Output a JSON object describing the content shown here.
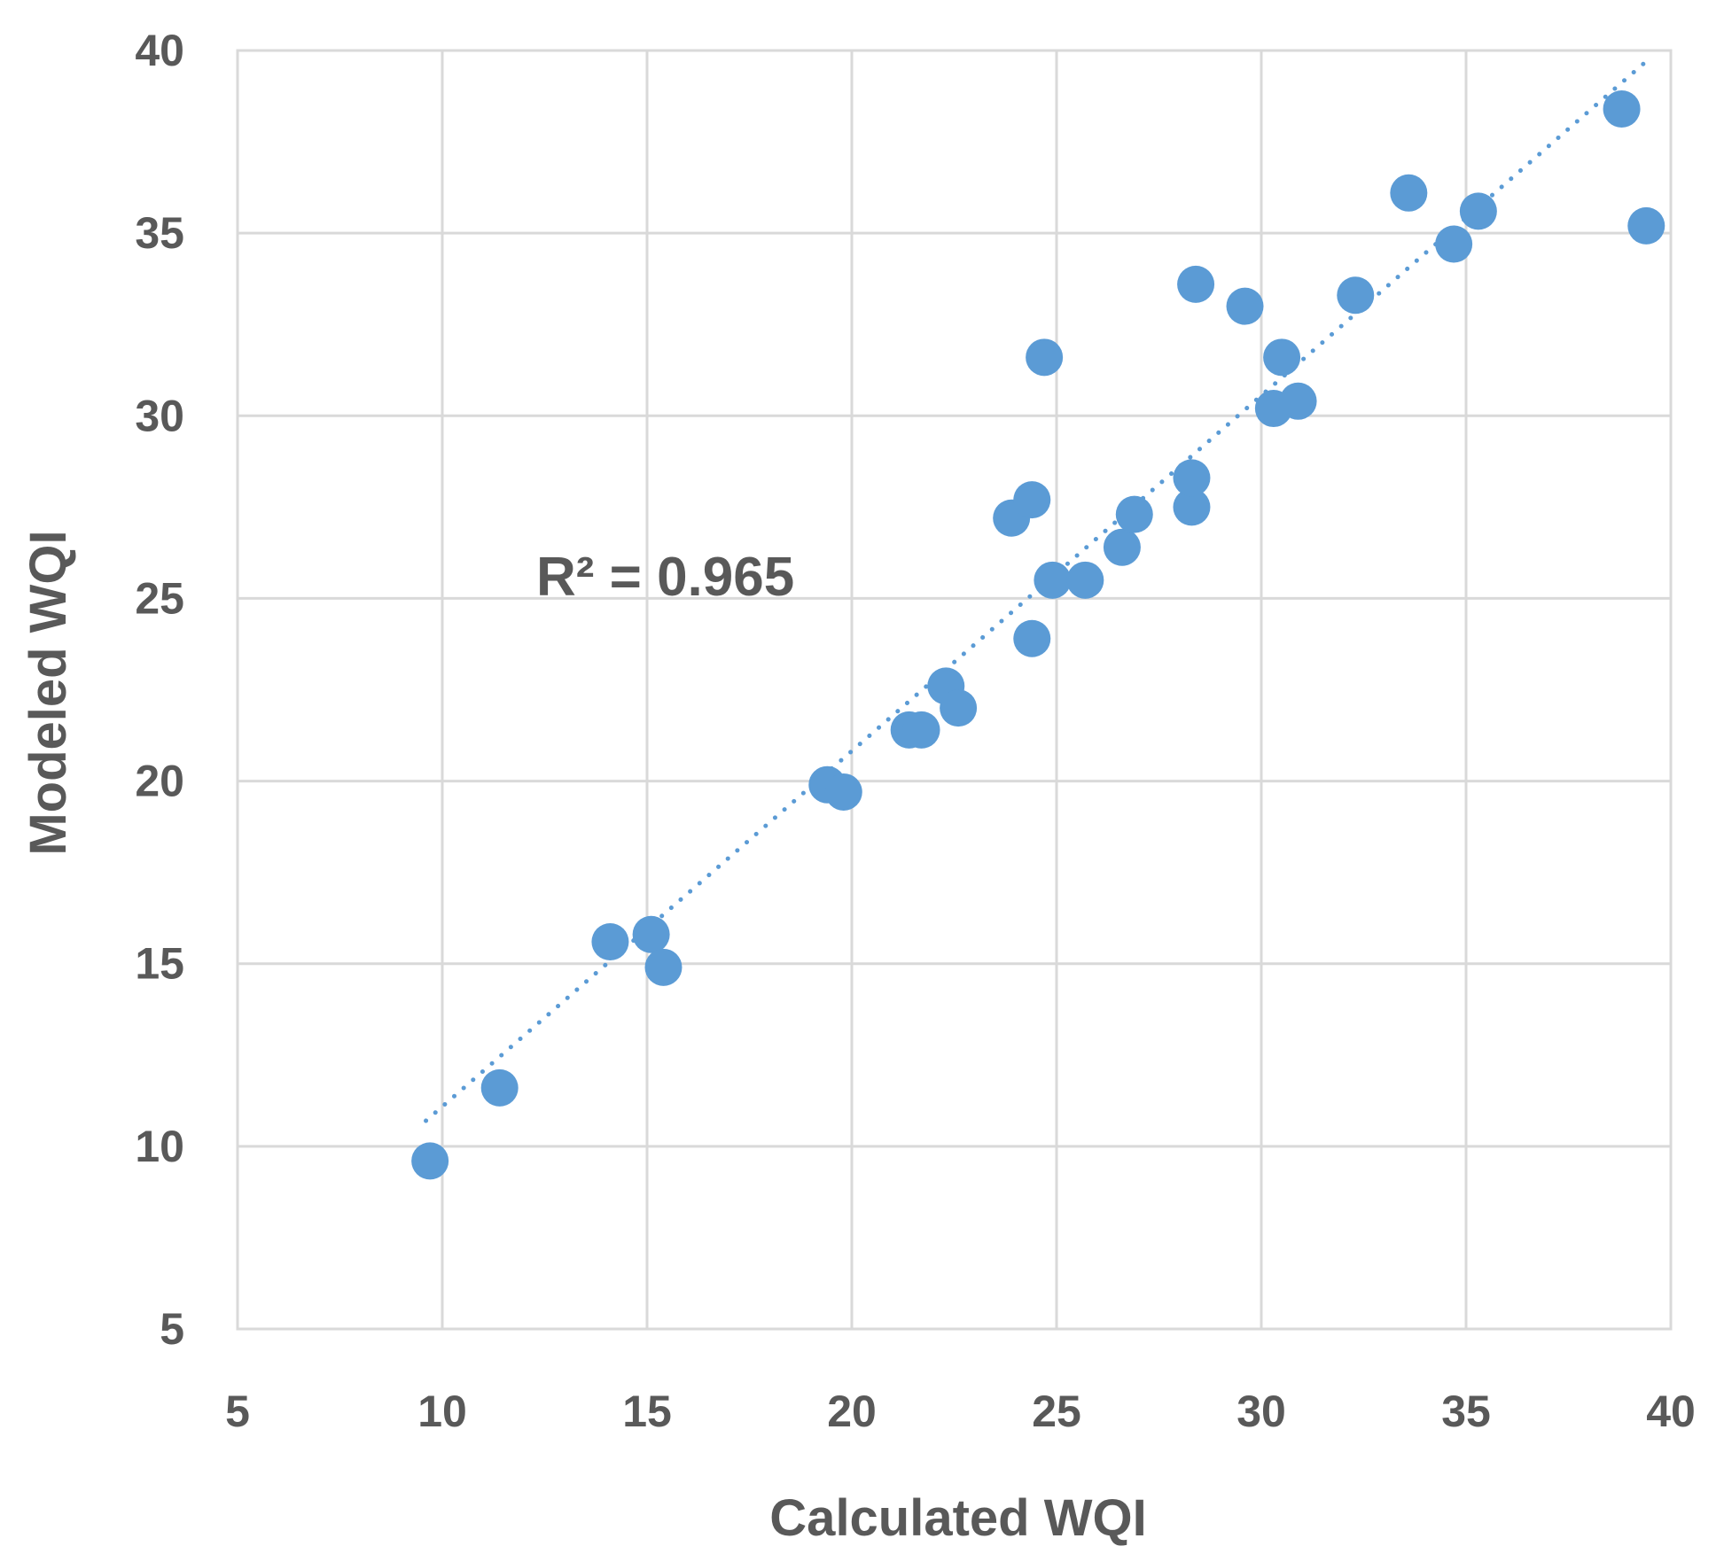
{
  "chart_data": {
    "type": "scatter",
    "title": "",
    "xlabel": "Calculated WQI",
    "ylabel": "Modeled WQI",
    "xlim": [
      5,
      40
    ],
    "ylim": [
      5,
      40
    ],
    "xticks": [
      5,
      10,
      15,
      20,
      25,
      30,
      35,
      40
    ],
    "yticks": [
      5,
      10,
      15,
      20,
      25,
      30,
      35,
      40
    ],
    "grid": true,
    "marker_color": "#5b9bd5",
    "trendline": {
      "style": "dotted",
      "color": "#5b9bd5",
      "x": [
        9.6,
        39.5
      ],
      "y": [
        10.7,
        39.8
      ],
      "label": "R² = 0.965"
    },
    "series": [
      {
        "name": "WQI",
        "x": [
          9.7,
          11.4,
          14.1,
          15.1,
          15.4,
          19.4,
          19.8,
          21.4,
          21.7,
          22.3,
          22.6,
          23.9,
          24.4,
          24.4,
          24.7,
          24.9,
          25.7,
          26.6,
          26.9,
          28.3,
          28.3,
          28.4,
          29.6,
          30.3,
          30.5,
          30.9,
          32.3,
          33.6,
          34.7,
          35.3,
          38.8,
          39.4
        ],
        "y": [
          9.6,
          11.6,
          15.6,
          15.8,
          14.9,
          19.9,
          19.7,
          21.4,
          21.4,
          22.6,
          22.0,
          27.2,
          27.7,
          23.9,
          31.6,
          25.5,
          25.5,
          26.4,
          27.3,
          27.5,
          28.3,
          33.6,
          33.0,
          30.2,
          31.6,
          30.4,
          33.3,
          36.1,
          34.7,
          35.6,
          38.4,
          35.2
        ]
      }
    ]
  }
}
